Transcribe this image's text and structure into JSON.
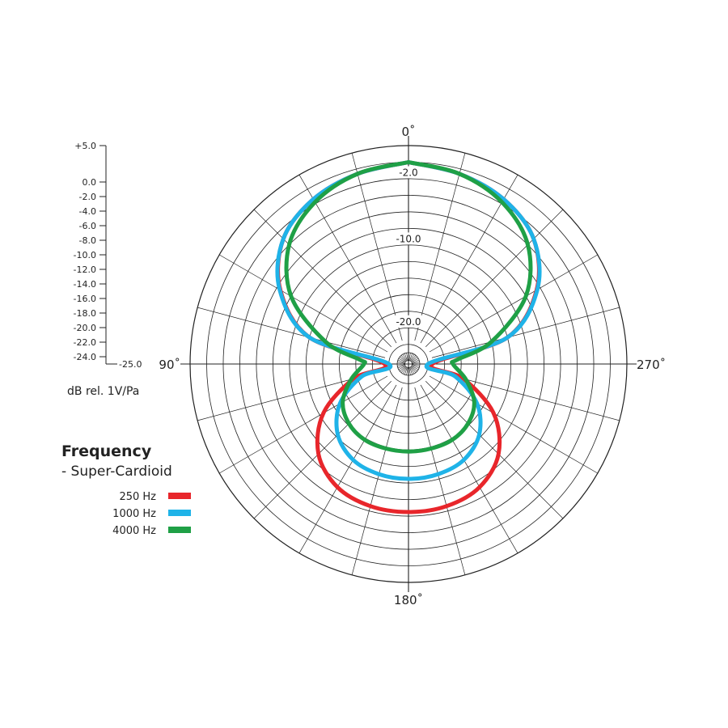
{
  "chart_data": {
    "type": "polar",
    "angle_labels": [
      "0˚",
      "90˚",
      "180˚",
      "270˚"
    ],
    "angle_step_deg": 15,
    "r_range_db": [
      -25,
      0
    ],
    "ring_step_db": 2,
    "ring_labels": [
      "-2.0",
      "-10.0",
      "-20.0"
    ],
    "scale": {
      "ticks": [
        "+5.0",
        "0.0",
        "-2.0",
        "-4.0",
        "-6.0",
        "-8.0",
        "-10.0",
        "-12.0",
        "-14.0",
        "-16.0",
        "-18.0",
        "-20.0",
        "-22.0",
        "-24.0"
      ],
      "bottom_label": "-25.0",
      "unit_label": "dB rel. 1V/Pa"
    },
    "legend": {
      "title": "Frequency",
      "subtitle": "- Super-Cardioid",
      "items": [
        {
          "label": "250 Hz",
          "color": "#e8262b"
        },
        {
          "label": "1000 Hz",
          "color": "#1fb3e8"
        },
        {
          "label": "4000 Hz",
          "color": "#1fa046"
        }
      ]
    },
    "series": [
      {
        "name": "250 Hz",
        "color": "#e8262b",
        "angles_deg": [
          0,
          15,
          30,
          45,
          60,
          75,
          90,
          105,
          120,
          135,
          150,
          165,
          180,
          195,
          210,
          225,
          240,
          255,
          270,
          285,
          300,
          315,
          330,
          345,
          360
        ],
        "values_db": [
          -2.0,
          -2.6,
          -3.4,
          -5.0,
          -8.5,
          -14.0,
          -23.5,
          -19.5,
          -14.5,
          -11.0,
          -9.2,
          -8.6,
          -8.5,
          -8.6,
          -9.2,
          -11.0,
          -14.5,
          -19.5,
          -23.5,
          -14.0,
          -8.5,
          -5.0,
          -3.4,
          -2.6,
          -2.0
        ]
      },
      {
        "name": "1000 Hz",
        "color": "#1fb3e8",
        "angles_deg": [
          0,
          15,
          30,
          45,
          60,
          75,
          90,
          105,
          120,
          135,
          150,
          165,
          180,
          195,
          210,
          225,
          240,
          255,
          270,
          285,
          300,
          315,
          330,
          345,
          360
        ],
        "values_db": [
          -2.0,
          -2.6,
          -3.4,
          -5.0,
          -8.4,
          -14.0,
          -24.0,
          -20.5,
          -16.8,
          -14.3,
          -13.0,
          -12.6,
          -12.5,
          -12.6,
          -13.0,
          -14.3,
          -16.8,
          -20.5,
          -24.0,
          -14.0,
          -8.4,
          -5.0,
          -3.4,
          -2.6,
          -2.0
        ]
      },
      {
        "name": "4000 Hz",
        "color": "#1fa046",
        "angles_deg": [
          0,
          15,
          30,
          45,
          60,
          75,
          85,
          90,
          105,
          120,
          135,
          150,
          165,
          180,
          195,
          210,
          225,
          240,
          255,
          270,
          275,
          285,
          300,
          315,
          330,
          345,
          360
        ],
        "values_db": [
          -2.0,
          -2.6,
          -3.8,
          -6.0,
          -10.0,
          -16.0,
          -20.5,
          -21.0,
          -19.2,
          -17.2,
          -16.2,
          -15.8,
          -15.8,
          -15.8,
          -15.8,
          -15.8,
          -16.2,
          -17.2,
          -19.2,
          -21.0,
          -20.5,
          -16.0,
          -10.0,
          -6.0,
          -3.8,
          -2.6,
          -2.0
        ]
      }
    ]
  }
}
